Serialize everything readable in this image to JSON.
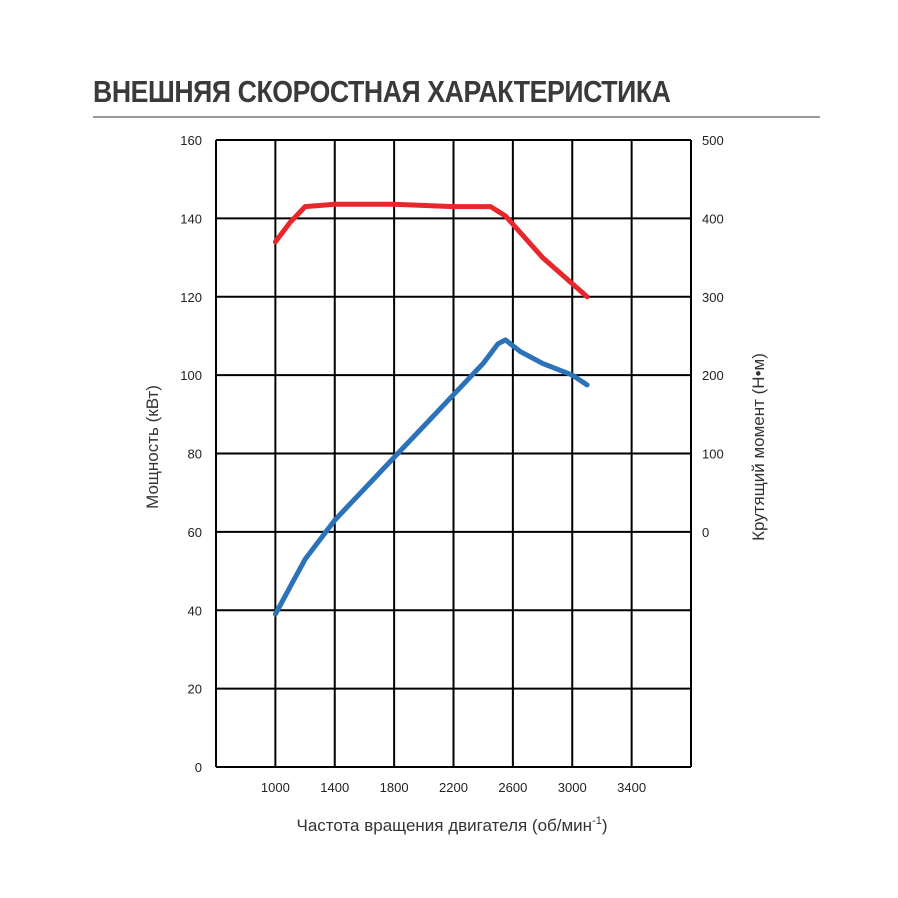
{
  "title": "ВНЕШНЯЯ СКОРОСТНАЯ ХАРАКТЕРИСТИКА",
  "chart_data": {
    "type": "line",
    "title": "ВНЕШНЯЯ СКОРОСТНАЯ ХАРАКТЕРИСТИКА",
    "xlabel": "Частота вращения двигателя (об/мин",
    "xlabel_sup": "-1",
    "xlabel_close": ")",
    "ylabel": "Мощность (кВт)",
    "y2label": "Крутящий момент (Н•м)",
    "xlim": [
      600,
      3800
    ],
    "ylim": [
      0,
      160
    ],
    "y2lim": [
      0,
      500
    ],
    "x_ticks": [
      1000,
      1400,
      1800,
      2200,
      2600,
      3000,
      3400
    ],
    "y_ticks": [
      0,
      20,
      40,
      60,
      80,
      100,
      120,
      140,
      160
    ],
    "y2_ticks": [
      0,
      100,
      200,
      300,
      400,
      500
    ],
    "grid": true,
    "series": [
      {
        "axis": "right",
        "color": "#e8262b",
        "x": [
          1000,
          1100,
          1200,
          1400,
          1800,
          2200,
          2450,
          2550,
          2800,
          3100
        ],
        "values": [
          370,
          395,
          415,
          418,
          418,
          415,
          415,
          403,
          350,
          300
        ]
      },
      {
        "axis": "left",
        "color": "#2b72b8",
        "x": [
          1000,
          1100,
          1200,
          1400,
          1600,
          1800,
          2000,
          2200,
          2400,
          2500,
          2550,
          2650,
          2800,
          3000,
          3100
        ],
        "values": [
          39,
          46,
          53,
          63,
          71,
          79,
          87,
          95,
          103,
          108,
          109,
          106,
          103,
          100,
          97.5
        ]
      }
    ]
  }
}
